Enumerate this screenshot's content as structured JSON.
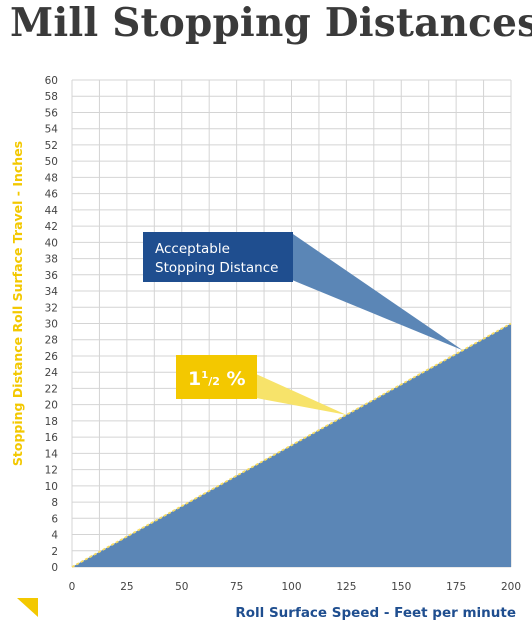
{
  "title": "Mill Stopping Distances",
  "chart_data": {
    "type": "area",
    "title": "Mill Stopping Distances",
    "xlabel": "Roll Surface Speed - Feet per minute",
    "ylabel": "Stopping Distance Roll Surface Travel - Inches",
    "xlim": [
      0,
      200
    ],
    "ylim": [
      0,
      60
    ],
    "x_ticks": [
      0,
      25,
      50,
      75,
      100,
      125,
      150,
      175,
      200
    ],
    "y_ticks": [
      0,
      2,
      4,
      6,
      8,
      10,
      12,
      14,
      16,
      18,
      20,
      22,
      24,
      26,
      28,
      30,
      32,
      34,
      36,
      38,
      40,
      42,
      44,
      46,
      48,
      50,
      52,
      54,
      56,
      58,
      60
    ],
    "grid": true,
    "series": [
      {
        "x": [
          0,
          200
        ],
        "y": [
          0,
          30
        ]
      }
    ],
    "annotations": [
      {
        "text": "Acceptable",
        "text2": "Stopping Distance",
        "points_to": {
          "x": 178,
          "y": 26.7
        }
      },
      {
        "text": "1",
        "sup": "1",
        "sub": "2",
        "suffix": " %",
        "points_to": {
          "x": 125,
          "y": 18.75
        }
      }
    ]
  },
  "colors": {
    "area_fill": "#5b86b6",
    "boundary_line": "#f7dc62",
    "callout_blue": "#1f4e8f",
    "callout_yellow": "#f3c800",
    "pointer_yellow": "#f7e36a",
    "axis_label_yellow": "#f3c800",
    "axis_label_blue": "#1f4e8f",
    "grid": "#d4d4d4",
    "title": "#3a3a3a"
  },
  "icons": {
    "corner_mark": "yellow-triangle-icon"
  }
}
